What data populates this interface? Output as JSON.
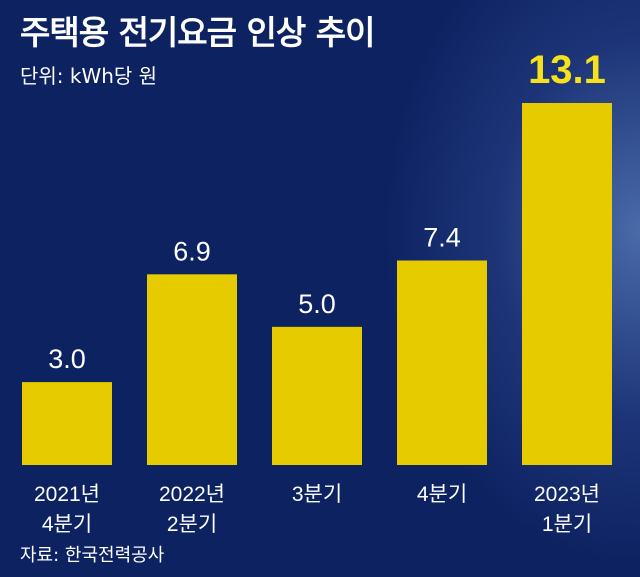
{
  "chart_data": {
    "type": "bar",
    "title": "주택용 전기요금 인상 추이",
    "unit_label": "단위: kWh당 원",
    "source": "자료: 한국전력공사",
    "categories": [
      [
        "2021년",
        "4분기"
      ],
      [
        "2022년",
        "2분기"
      ],
      [
        "3분기"
      ],
      [
        "4분기"
      ],
      [
        "2023년",
        "1분기"
      ]
    ],
    "values": [
      3.0,
      6.9,
      5.0,
      7.4,
      13.1
    ],
    "value_labels": [
      "3.0",
      "6.9",
      "5.0",
      "7.4",
      "13.1"
    ],
    "highlight_index": 4,
    "xlabel": "",
    "ylabel": "",
    "ylim": [
      0,
      13.1
    ],
    "grid": false,
    "colors": {
      "bar": "#e6cb00",
      "highlight_label": "#f7e11a",
      "background": "#0d2261"
    }
  }
}
